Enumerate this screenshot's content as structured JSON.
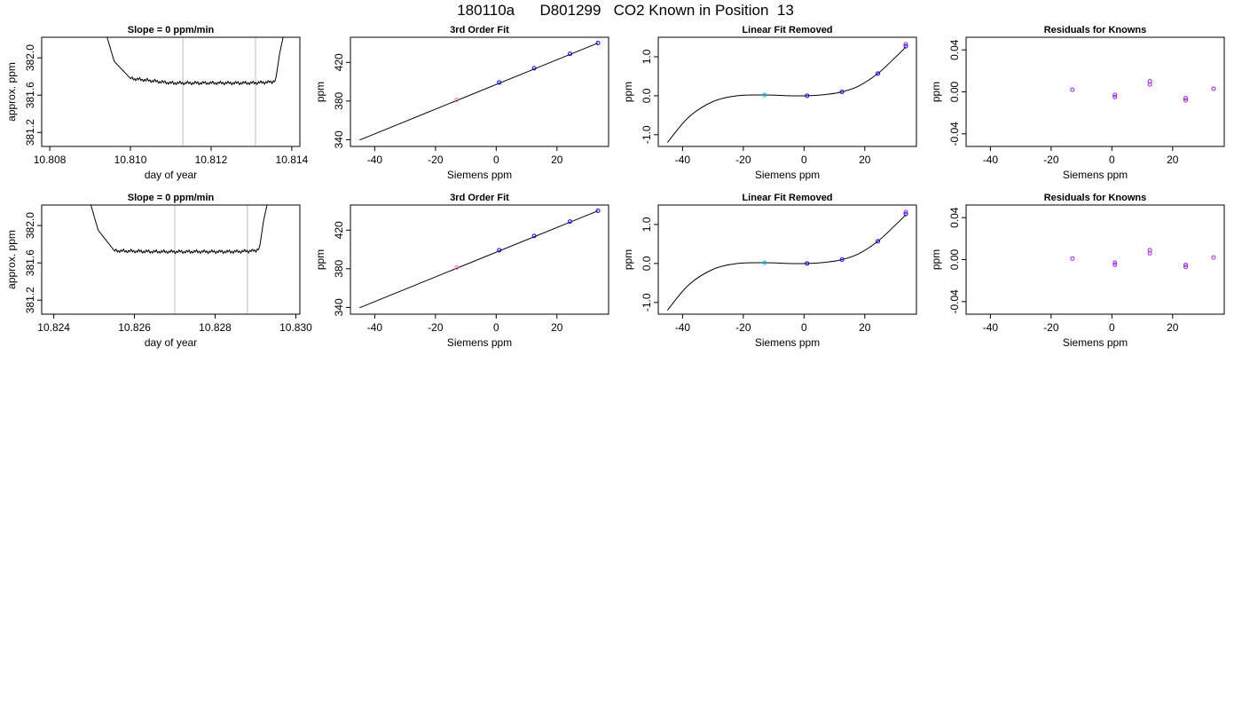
{
  "page": {
    "title": "180110a      D801299   CO2 Known in Position  13"
  },
  "colors": {
    "frame": "#000000",
    "trace": "#000000",
    "vline": "#bebebe",
    "point_blue": "#0000ff",
    "point_purple": "#a020f0",
    "point_cyan": "#00bfff",
    "point_pink": "#ff69b4"
  },
  "chart_data": [
    {
      "id": "r1-trace",
      "type": "line",
      "title": "Slope =  0  ppm/min",
      "xlabel": "day of year",
      "ylabel": "approx. ppm",
      "xlim": [
        10.8078,
        10.8142
      ],
      "ylim": [
        381.05,
        382.22
      ],
      "xticks": [
        10.808,
        10.81,
        10.812,
        10.814
      ],
      "xtick_labels": [
        "10.808",
        "10.810",
        "10.812",
        "10.814"
      ],
      "yticks": [
        381.2,
        381.6,
        382.0
      ],
      "ytick_labels": [
        "381.2",
        "381.6",
        "382.0"
      ],
      "vlines": [
        10.8113,
        10.8131
      ],
      "series": [
        {
          "x": [
            10.8094,
            10.8096,
            10.81,
            10.811,
            10.812,
            10.813,
            10.8135,
            10.8136,
            10.8137,
            10.8138
          ],
          "y": [
            382.25,
            381.96,
            381.78,
            381.73,
            381.73,
            381.73,
            381.74,
            381.76,
            382.05,
            382.25
          ]
        }
      ]
    },
    {
      "id": "r1-fit",
      "type": "scatter",
      "title": "3rd Order Fit",
      "xlabel": "Siemens ppm",
      "ylabel": "ppm",
      "xlim": [
        -48,
        37
      ],
      "ylim": [
        333,
        446
      ],
      "xticks": [
        -40,
        -20,
        0,
        20
      ],
      "xtick_labels": [
        "-40",
        "-20",
        "0",
        "20"
      ],
      "yticks": [
        340,
        380,
        420
      ],
      "ytick_labels": [
        "340",
        "380",
        "420"
      ],
      "line": {
        "x": [
          -45,
          33.5
        ],
        "y": [
          339.6,
          440.0
        ]
      },
      "points": [
        {
          "x": -13.0,
          "y": 381.2,
          "color": "#ff69b4"
        },
        {
          "x": 1.0,
          "y": 399.2,
          "color": "#0000ff"
        },
        {
          "x": 12.5,
          "y": 414.0,
          "color": "#0000ff"
        },
        {
          "x": 24.3,
          "y": 428.9,
          "color": "#0000ff"
        },
        {
          "x": 33.5,
          "y": 440.0,
          "color": "#0000ff"
        }
      ]
    },
    {
      "id": "r1-linfit",
      "type": "line",
      "title": "Linear Fit Removed",
      "xlabel": "Siemens ppm",
      "ylabel": "ppm",
      "xlim": [
        -48,
        37
      ],
      "ylim": [
        -1.3,
        1.5
      ],
      "xticks": [
        -40,
        -20,
        0,
        20
      ],
      "xtick_labels": [
        "-40",
        "-20",
        "0",
        "20"
      ],
      "yticks": [
        -1.0,
        0.0,
        1.0
      ],
      "ytick_labels": [
        "-1.0",
        "0.0",
        "1.0"
      ],
      "cubic": {
        "x": [
          -45,
          -38,
          -30,
          -22,
          -13,
          -5,
          1,
          8,
          12.5,
          18,
          24.3,
          30,
          33.5
        ],
        "y": [
          -1.2,
          -0.55,
          -0.15,
          0.0,
          0.02,
          0.0,
          0.0,
          0.04,
          0.1,
          0.25,
          0.57,
          0.98,
          1.25
        ]
      },
      "points": [
        {
          "x": -13.0,
          "y": 0.02,
          "color": "#00bfff"
        },
        {
          "x": 1.0,
          "y": 0.0,
          "color": "#0000ff"
        },
        {
          "x": 12.5,
          "y": 0.1,
          "color": "#0000ff"
        },
        {
          "x": 24.3,
          "y": 0.57,
          "color": "#0000ff"
        },
        {
          "x": 33.5,
          "y": 1.27,
          "color": "#0000ff"
        },
        {
          "x": 33.5,
          "y": 1.32,
          "color": "#a020f0"
        }
      ]
    },
    {
      "id": "r1-resid",
      "type": "scatter",
      "title": "Residuals for Knowns",
      "xlabel": "Siemens ppm",
      "ylabel": "ppm",
      "xlim": [
        -48,
        37
      ],
      "ylim": [
        -0.052,
        0.052
      ],
      "xticks": [
        -40,
        -20,
        0,
        20
      ],
      "xtick_labels": [
        "-40",
        "-20",
        "0",
        "20"
      ],
      "yticks": [
        -0.04,
        0.0,
        0.04
      ],
      "ytick_labels": [
        "-0.04",
        "0.00",
        "0.04"
      ],
      "points": [
        {
          "x": -13.0,
          "y": 0.002,
          "color": "#a020f0"
        },
        {
          "x": 1.0,
          "y": -0.003,
          "color": "#a020f0"
        },
        {
          "x": 1.0,
          "y": -0.005,
          "color": "#a020f0"
        },
        {
          "x": 12.5,
          "y": 0.01,
          "color": "#a020f0"
        },
        {
          "x": 12.5,
          "y": 0.007,
          "color": "#a020f0"
        },
        {
          "x": 24.3,
          "y": -0.006,
          "color": "#a020f0"
        },
        {
          "x": 24.3,
          "y": -0.008,
          "color": "#a020f0"
        },
        {
          "x": 33.5,
          "y": 0.003,
          "color": "#a020f0"
        }
      ]
    },
    {
      "id": "r2-trace",
      "type": "line",
      "title": "Slope =  0  ppm/min",
      "xlabel": "day of year",
      "ylabel": "approx. ppm",
      "xlim": [
        10.8237,
        10.8301
      ],
      "ylim": [
        381.05,
        382.22
      ],
      "xticks": [
        10.824,
        10.826,
        10.828,
        10.83
      ],
      "xtick_labels": [
        "10.824",
        "10.826",
        "10.828",
        "10.830"
      ],
      "yticks": [
        381.2,
        381.6,
        382.0
      ],
      "ytick_labels": [
        "381.2",
        "381.6",
        "382.0"
      ],
      "vlines": [
        10.827,
        10.8288
      ],
      "series": [
        {
          "x": [
            10.8249,
            10.8251,
            10.8255,
            10.8265,
            10.8275,
            10.8285,
            10.829,
            10.8291,
            10.8292,
            10.8293
          ],
          "y": [
            382.25,
            381.95,
            381.73,
            381.72,
            381.72,
            381.72,
            381.73,
            381.76,
            382.05,
            382.25
          ]
        }
      ]
    },
    {
      "id": "r2-fit",
      "type": "scatter",
      "title": "3rd Order Fit",
      "xlabel": "Siemens ppm",
      "ylabel": "ppm",
      "xlim": [
        -48,
        37
      ],
      "ylim": [
        333,
        446
      ],
      "xticks": [
        -40,
        -20,
        0,
        20
      ],
      "xtick_labels": [
        "-40",
        "-20",
        "0",
        "20"
      ],
      "yticks": [
        340,
        380,
        420
      ],
      "ytick_labels": [
        "340",
        "380",
        "420"
      ],
      "line": {
        "x": [
          -45,
          33.5
        ],
        "y": [
          339.6,
          440.0
        ]
      },
      "points": [
        {
          "x": -13.0,
          "y": 381.2,
          "color": "#ff69b4"
        },
        {
          "x": 1.0,
          "y": 399.2,
          "color": "#0000ff"
        },
        {
          "x": 12.5,
          "y": 414.0,
          "color": "#0000ff"
        },
        {
          "x": 24.3,
          "y": 428.9,
          "color": "#0000ff"
        },
        {
          "x": 33.5,
          "y": 440.0,
          "color": "#0000ff"
        }
      ]
    },
    {
      "id": "r2-linfit",
      "type": "line",
      "title": "Linear Fit Removed",
      "xlabel": "Siemens ppm",
      "ylabel": "ppm",
      "xlim": [
        -48,
        37
      ],
      "ylim": [
        -1.3,
        1.5
      ],
      "xticks": [
        -40,
        -20,
        0,
        20
      ],
      "xtick_labels": [
        "-40",
        "-20",
        "0",
        "20"
      ],
      "yticks": [
        -1.0,
        0.0,
        1.0
      ],
      "ytick_labels": [
        "-1.0",
        "0.0",
        "1.0"
      ],
      "cubic": {
        "x": [
          -45,
          -38,
          -30,
          -22,
          -13,
          -5,
          1,
          8,
          12.5,
          18,
          24.3,
          30,
          33.5
        ],
        "y": [
          -1.2,
          -0.55,
          -0.15,
          0.0,
          0.02,
          0.0,
          0.0,
          0.04,
          0.1,
          0.25,
          0.57,
          0.98,
          1.25
        ]
      },
      "points": [
        {
          "x": -13.0,
          "y": 0.02,
          "color": "#00bfff"
        },
        {
          "x": 1.0,
          "y": 0.0,
          "color": "#0000ff"
        },
        {
          "x": 12.5,
          "y": 0.1,
          "color": "#0000ff"
        },
        {
          "x": 24.3,
          "y": 0.57,
          "color": "#0000ff"
        },
        {
          "x": 33.5,
          "y": 1.27,
          "color": "#0000ff"
        },
        {
          "x": 33.5,
          "y": 1.32,
          "color": "#a020f0"
        }
      ]
    },
    {
      "id": "r2-resid",
      "type": "scatter",
      "title": "Residuals for Knowns",
      "xlabel": "Siemens ppm",
      "ylabel": "ppm",
      "xlim": [
        -48,
        37
      ],
      "ylim": [
        -0.052,
        0.052
      ],
      "xticks": [
        -40,
        -20,
        0,
        20
      ],
      "xtick_labels": [
        "-40",
        "-20",
        "0",
        "20"
      ],
      "yticks": [
        -0.04,
        0.0,
        0.04
      ],
      "ytick_labels": [
        "-0.04",
        "0.00",
        "0.04"
      ],
      "points": [
        {
          "x": -13.0,
          "y": 0.001,
          "color": "#a020f0"
        },
        {
          "x": 1.0,
          "y": -0.003,
          "color": "#a020f0"
        },
        {
          "x": 1.0,
          "y": -0.005,
          "color": "#a020f0"
        },
        {
          "x": 12.5,
          "y": 0.009,
          "color": "#a020f0"
        },
        {
          "x": 12.5,
          "y": 0.006,
          "color": "#a020f0"
        },
        {
          "x": 24.3,
          "y": -0.005,
          "color": "#a020f0"
        },
        {
          "x": 24.3,
          "y": -0.007,
          "color": "#a020f0"
        },
        {
          "x": 33.5,
          "y": 0.002,
          "color": "#a020f0"
        }
      ]
    }
  ]
}
